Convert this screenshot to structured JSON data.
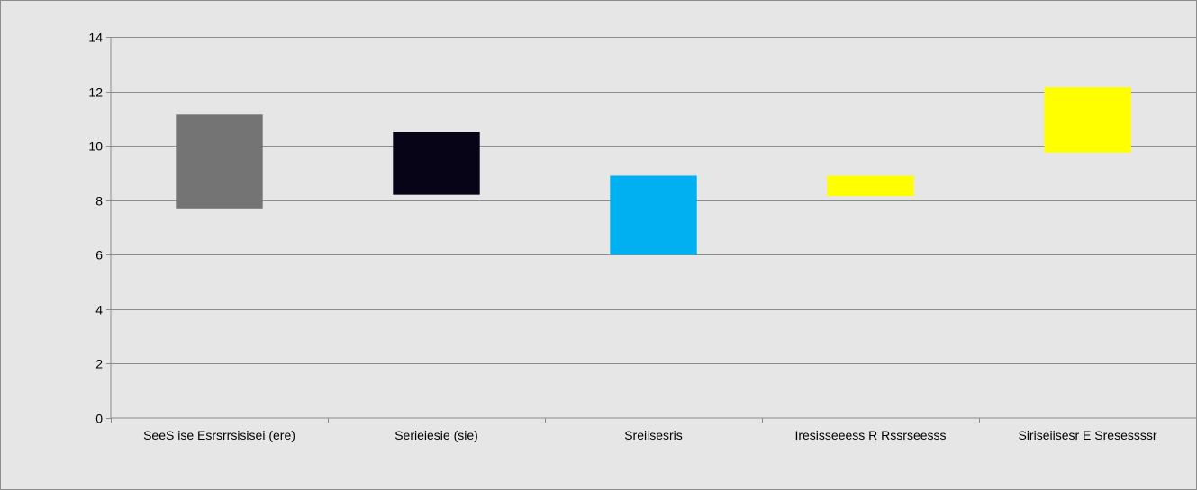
{
  "chart_data": {
    "type": "bar",
    "subtype": "floating-range",
    "categories": [
      "SeeS ise Esrsrrsisisei (ere)",
      "Serieiesie (sie)",
      "Sreiisesris",
      "Iresisseeess R Rssrseesss",
      "Siriseiisesr E Sresessssr"
    ],
    "ranges": [
      [
        7.7,
        11.15
      ],
      [
        8.2,
        10.5
      ],
      [
        6.0,
        8.9
      ],
      [
        8.15,
        8.9
      ],
      [
        9.75,
        12.15
      ]
    ],
    "colors": [
      "#747474",
      "#060416",
      "#00b0f0",
      "#ffff00",
      "#ffff00"
    ],
    "ylim": [
      0,
      14
    ],
    "yticks": [
      "0",
      "2",
      "4",
      "6",
      "8",
      "10",
      "12",
      "14"
    ],
    "grid": true,
    "legend": "none"
  }
}
